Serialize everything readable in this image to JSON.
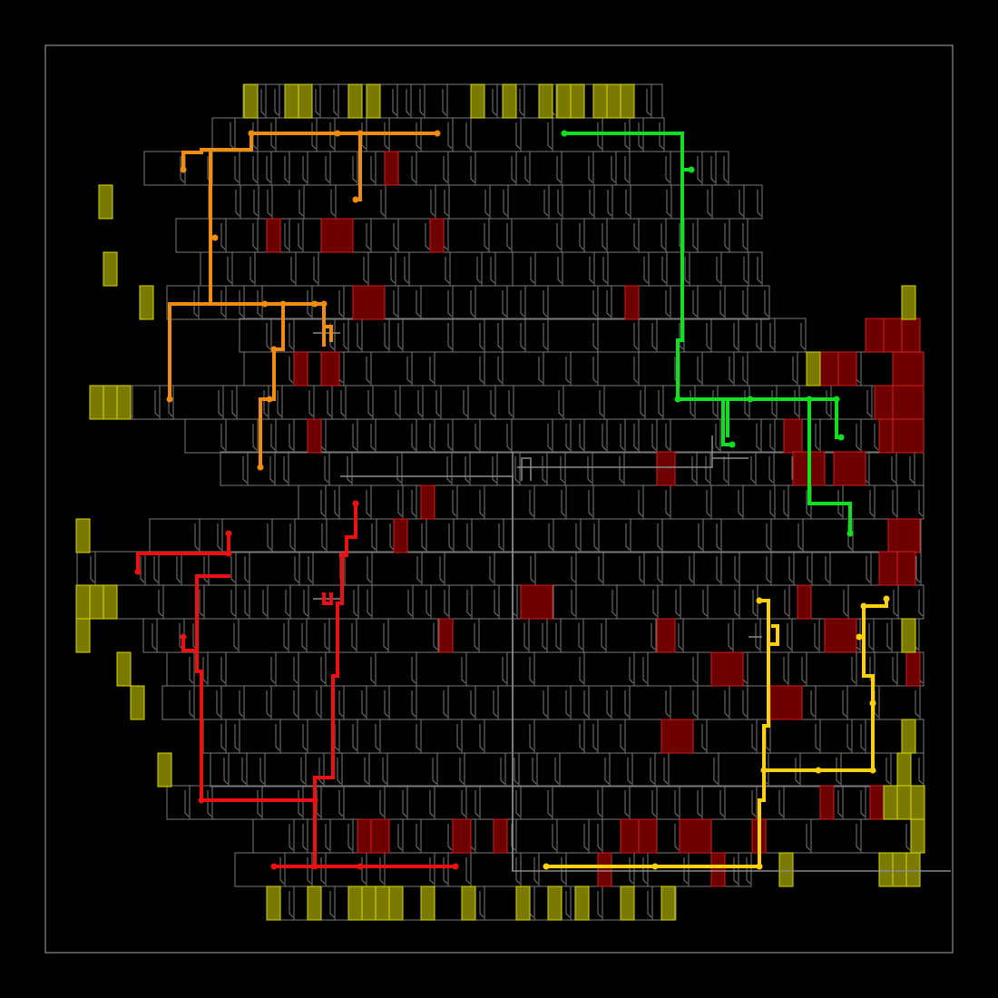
{
  "colors": {
    "background": "#000000",
    "cell_outline": "#7a7a7a",
    "hot_cell_fill": "#6e0000",
    "hot_cell_stroke": "#d02020",
    "io_pad_fill": "#7a7a00",
    "io_pad_stroke": "#d8d800",
    "net_orange": "#f08c10",
    "net_green": "#10e020",
    "net_red": "#ee1010",
    "net_yellow": "#ffd010",
    "net_gray": "#8c8c8c"
  },
  "nets": [
    {
      "name": "orange",
      "color": "#f08c10"
    },
    {
      "name": "green",
      "color": "#10e020"
    },
    {
      "name": "red",
      "color": "#ee1010"
    },
    {
      "name": "yellow",
      "color": "#ffd010"
    }
  ]
}
